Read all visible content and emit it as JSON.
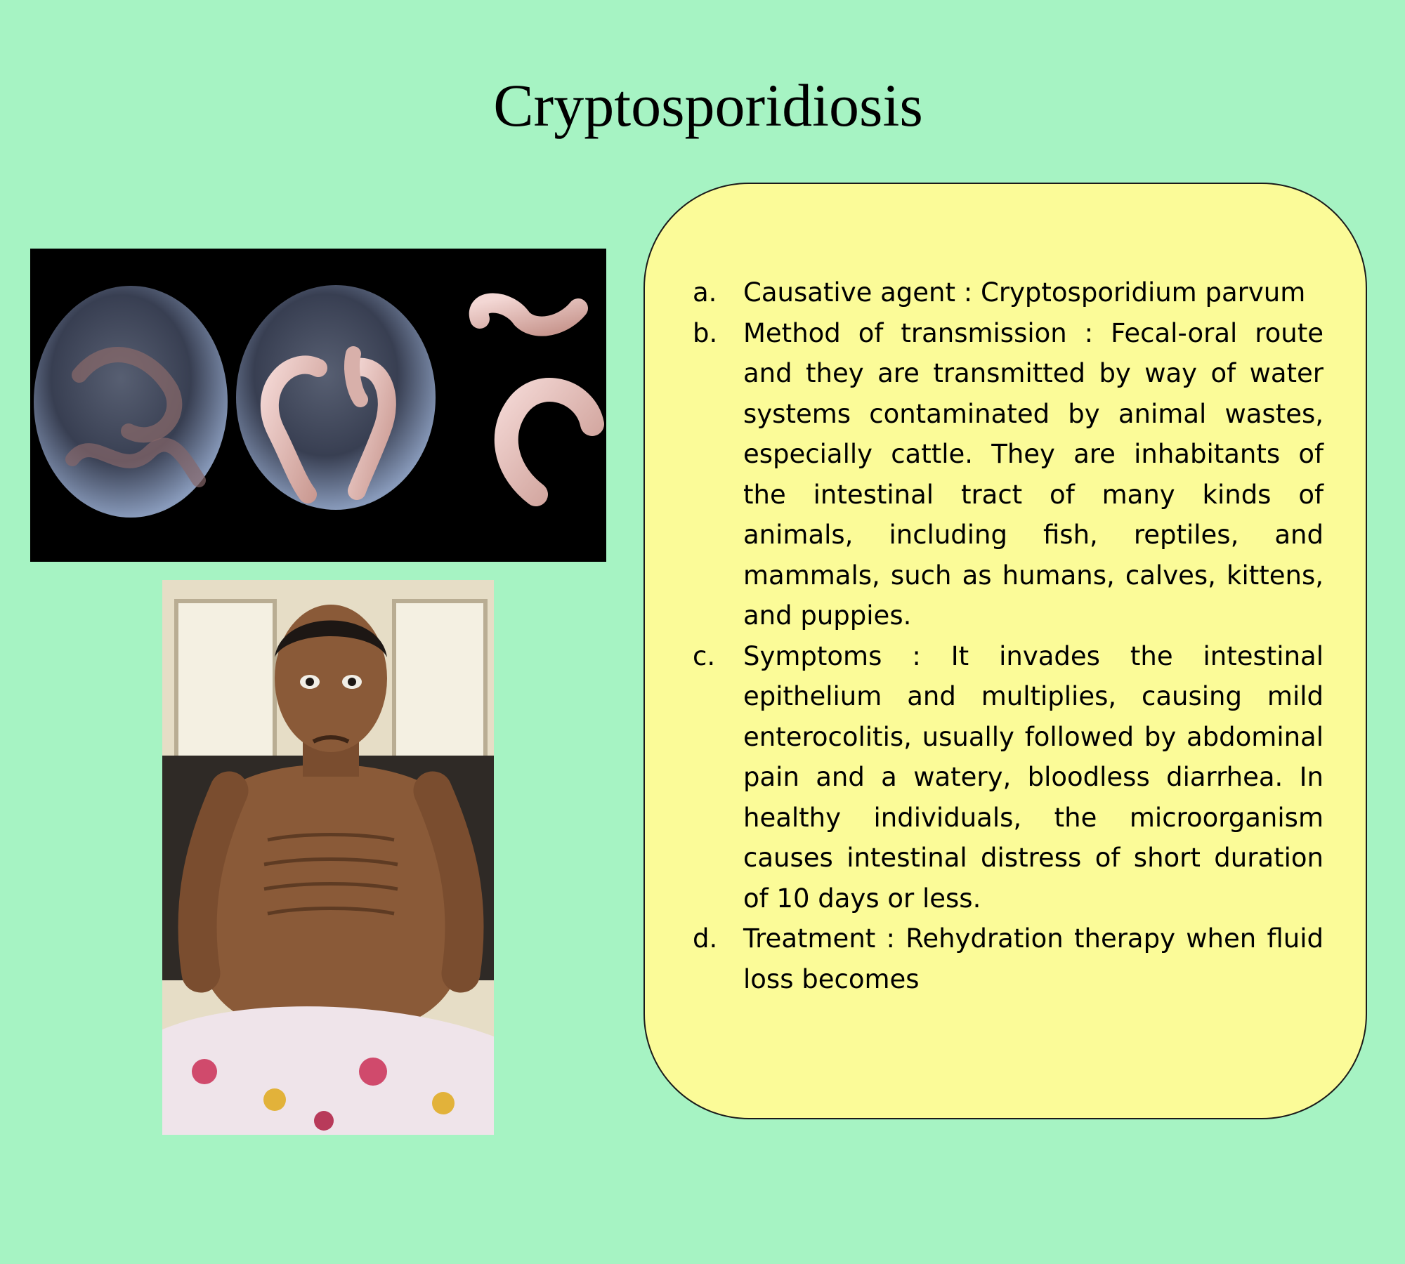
{
  "slide": {
    "title": "Cryptosporidiosis",
    "background_color": "#a6f3c3",
    "box_color": "#fbfb98"
  },
  "images": {
    "microscopy": {
      "icon": "cryptosporidium-oocyst-illustration"
    },
    "patient": {
      "icon": "wasted-patient-photo"
    }
  },
  "info": {
    "items": [
      {
        "marker": "a.",
        "text": "Causative agent : Cryptosporidium parvum"
      },
      {
        "marker": "b.",
        "text": "Method of transmission : Fecal-oral route and they are transmitted by way of water systems contaminated by animal wastes, especially cattle. They are inhabitants of the intestinal tract of many kinds of animals, including fish, reptiles, and mammals, such as humans, calves, kittens, and puppies."
      },
      {
        "marker": "c.",
        "text": "Symptoms : It invades the intestinal epithelium and multiplies, causing mild enterocolitis, usually followed by abdominal pain and a watery, bloodless diarrhea. In healthy individuals, the microorganism causes intestinal distress of short duration of 10 days or less."
      },
      {
        "marker": "d.",
        "text": "Treatment : Rehydration therapy when fluid loss becomes"
      }
    ]
  }
}
